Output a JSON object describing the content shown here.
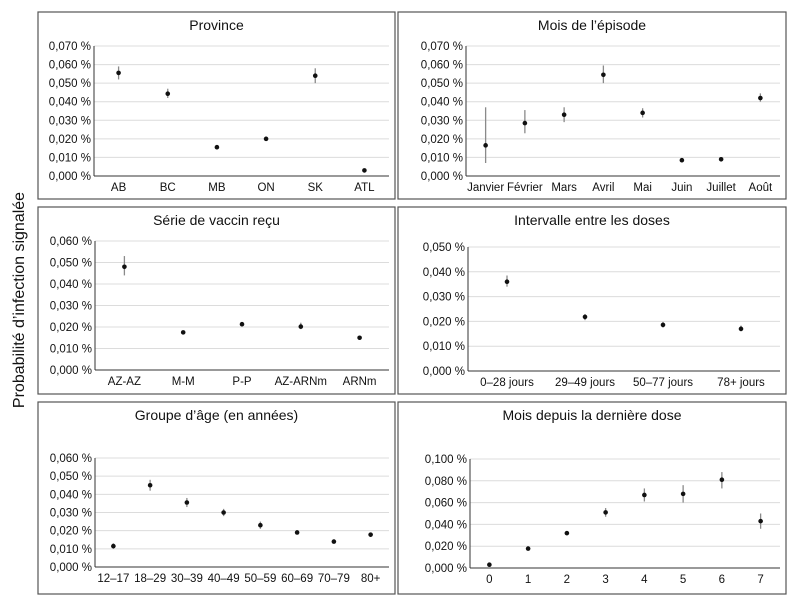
{
  "ylabel": "Probabilité d’infection signalée",
  "colors": {
    "point": "#111111",
    "errorbar": "#8a8a8a",
    "grid": "#dcdcdc",
    "frame": "#555555"
  },
  "chart_data": [
    {
      "type": "scatter",
      "title": "Province",
      "ylim": [
        0,
        0.07
      ],
      "yticks": [
        0,
        0.01,
        0.02,
        0.03,
        0.04,
        0.05,
        0.06,
        0.07
      ],
      "ytick_labels": [
        "0,000 %",
        "0,010 %",
        "0,020 %",
        "0,030 %",
        "0,040 %",
        "0,050 %",
        "0,060 %",
        "0,070 %"
      ],
      "categories": [
        "AB",
        "BC",
        "MB",
        "ON",
        "SK",
        "ATL"
      ],
      "values": [
        0.0555,
        0.0443,
        0.0155,
        0.02,
        0.054,
        0.003
      ],
      "lower": [
        0.052,
        0.042,
        0.0148,
        0.0193,
        0.05,
        0.0025
      ],
      "upper": [
        0.059,
        0.047,
        0.0162,
        0.0207,
        0.058,
        0.0035
      ]
    },
    {
      "type": "scatter",
      "title": "Mois de l’épisode",
      "ylim": [
        0,
        0.07
      ],
      "yticks": [
        0,
        0.01,
        0.02,
        0.03,
        0.04,
        0.05,
        0.06,
        0.07
      ],
      "ytick_labels": [
        "0,000 %",
        "0,010 %",
        "0,020 %",
        "0,030 %",
        "0,040 %",
        "0,050 %",
        "0,060 %",
        "0,070 %"
      ],
      "categories": [
        "Janvier",
        "Février",
        "Mars",
        "Avril",
        "Mai",
        "Juin",
        "Juillet",
        "Août"
      ],
      "values": [
        0.0165,
        0.0285,
        0.033,
        0.0545,
        0.034,
        0.0085,
        0.009,
        0.042
      ],
      "lower": [
        0.007,
        0.023,
        0.029,
        0.05,
        0.0315,
        0.008,
        0.0085,
        0.04
      ],
      "upper": [
        0.037,
        0.0355,
        0.037,
        0.0595,
        0.0365,
        0.009,
        0.0095,
        0.0445
      ]
    },
    {
      "type": "scatter",
      "title": "Série de vaccin reçu",
      "ylim": [
        0,
        0.06
      ],
      "yticks": [
        0,
        0.01,
        0.02,
        0.03,
        0.04,
        0.05,
        0.06
      ],
      "ytick_labels": [
        "0,000 %",
        "0,010 %",
        "0,020 %",
        "0,030 %",
        "0,040 %",
        "0,050 %",
        "0,060 %"
      ],
      "categories": [
        "AZ-AZ",
        "M-M",
        "P-P",
        "AZ-ARNm",
        "ARNm"
      ],
      "values": [
        0.048,
        0.0175,
        0.0213,
        0.0202,
        0.015
      ],
      "lower": [
        0.044,
        0.0168,
        0.0205,
        0.019,
        0.014
      ],
      "upper": [
        0.053,
        0.0183,
        0.022,
        0.022,
        0.0158
      ]
    },
    {
      "type": "scatter",
      "title": "Intervalle entre les doses",
      "ylim": [
        0,
        0.05
      ],
      "yticks": [
        0,
        0.01,
        0.02,
        0.03,
        0.04,
        0.05
      ],
      "ytick_labels": [
        "0,000 %",
        "0,010 %",
        "0,020 %",
        "0,030 %",
        "0,040 %",
        "0,050 %"
      ],
      "categories": [
        "0–28 jours",
        "29–49 jours",
        "50–77 jours",
        "78+ jours"
      ],
      "values": [
        0.036,
        0.0218,
        0.0186,
        0.017
      ],
      "lower": [
        0.034,
        0.0205,
        0.0175,
        0.016
      ],
      "upper": [
        0.0385,
        0.023,
        0.0198,
        0.0183
      ]
    },
    {
      "type": "scatter",
      "title": "Groupe d’âge (en années)",
      "ylim": [
        0,
        0.06
      ],
      "yticks": [
        0,
        0.01,
        0.02,
        0.03,
        0.04,
        0.05,
        0.06
      ],
      "ytick_labels": [
        "0,000 %",
        "0,010 %",
        "0,020 %",
        "0,030 %",
        "0,040 %",
        "0,050 %",
        "0,060 %"
      ],
      "categories": [
        "12–17",
        "18–29",
        "30–39",
        "40–49",
        "50–59",
        "60–69",
        "70–79",
        "80+"
      ],
      "values": [
        0.0115,
        0.045,
        0.0355,
        0.03,
        0.023,
        0.019,
        0.014,
        0.0178
      ],
      "lower": [
        0.01,
        0.042,
        0.033,
        0.028,
        0.021,
        0.018,
        0.013,
        0.0165
      ],
      "upper": [
        0.013,
        0.048,
        0.038,
        0.032,
        0.025,
        0.02,
        0.015,
        0.019
      ]
    },
    {
      "type": "scatter",
      "title": "Mois depuis la dernière dose",
      "ylim": [
        0,
        0.1
      ],
      "yticks": [
        0,
        0.02,
        0.04,
        0.06,
        0.08,
        0.1
      ],
      "ytick_labels": [
        "0,000 %",
        "0,020 %",
        "0,040 %",
        "0,060 %",
        "0,080 %",
        "0,100 %"
      ],
      "categories": [
        "0",
        "1",
        "2",
        "3",
        "4",
        "5",
        "6",
        "7"
      ],
      "values": [
        0.003,
        0.0178,
        0.032,
        0.051,
        0.067,
        0.068,
        0.081,
        0.043
      ],
      "lower": [
        0.0025,
        0.017,
        0.03,
        0.047,
        0.061,
        0.06,
        0.073,
        0.036
      ],
      "upper": [
        0.0035,
        0.0186,
        0.034,
        0.055,
        0.073,
        0.076,
        0.088,
        0.05
      ]
    }
  ]
}
